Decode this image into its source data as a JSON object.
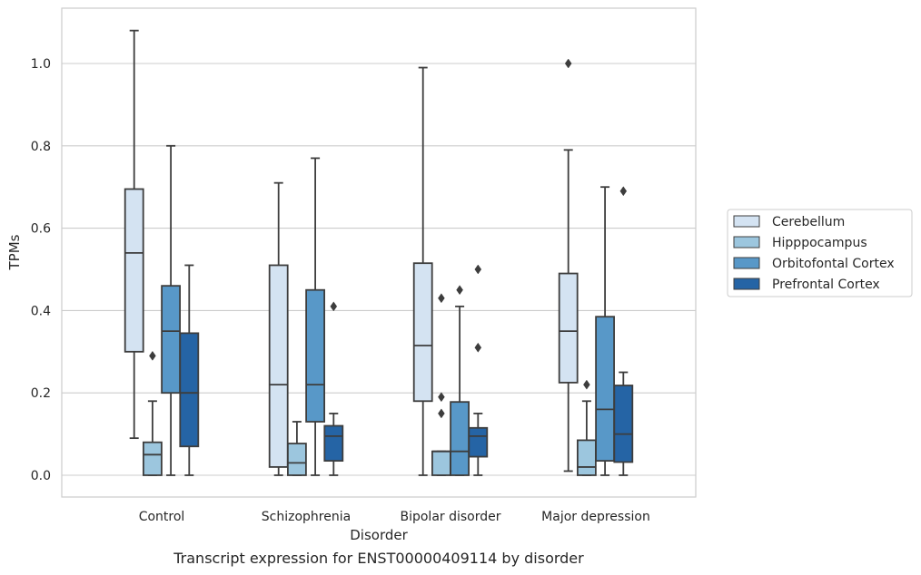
{
  "caption": "Transcript expression for ENST00000409114 by disorder",
  "chart_data": {
    "type": "boxplot",
    "xlabel": "Disorder",
    "ylabel": "TPMs",
    "ylim": [
      -0.05,
      1.14
    ],
    "yticks": [
      "0.0",
      "0.2",
      "0.4",
      "0.6",
      "0.8",
      "1.0"
    ],
    "grid": "horizontal",
    "legend_position": "right",
    "categories": [
      "Control",
      "Schizophrenia",
      "Bipolar disorder",
      "Major depression"
    ],
    "series": [
      {
        "name": "Cerebellum",
        "color": "#d4e3f2",
        "boxes": [
          {
            "whislo": 0.09,
            "q1": 0.3,
            "med": 0.54,
            "q3": 0.695,
            "whishi": 1.08,
            "fliers": []
          },
          {
            "whislo": 0.0,
            "q1": 0.02,
            "med": 0.22,
            "q3": 0.51,
            "whishi": 0.71,
            "fliers": []
          },
          {
            "whislo": 0.0,
            "q1": 0.18,
            "med": 0.315,
            "q3": 0.515,
            "whishi": 0.99,
            "fliers": []
          },
          {
            "whislo": 0.01,
            "q1": 0.225,
            "med": 0.35,
            "q3": 0.49,
            "whishi": 0.79,
            "fliers": [
              1.0
            ]
          }
        ]
      },
      {
        "name": "Hipppocampus",
        "color": "#9cc6de",
        "boxes": [
          {
            "whislo": 0.0,
            "q1": 0.0,
            "med": 0.05,
            "q3": 0.08,
            "whishi": 0.18,
            "fliers": [
              0.29
            ]
          },
          {
            "whislo": 0.0,
            "q1": 0.0,
            "med": 0.03,
            "q3": 0.077,
            "whishi": 0.13,
            "fliers": []
          },
          {
            "whislo": 0.0,
            "q1": 0.0,
            "med": 0.058,
            "q3": 0.058,
            "whishi": 0.058,
            "fliers": [
              0.15,
              0.19,
              0.43
            ]
          },
          {
            "whislo": 0.0,
            "q1": 0.0,
            "med": 0.02,
            "q3": 0.085,
            "whishi": 0.18,
            "fliers": [
              0.22
            ]
          }
        ]
      },
      {
        "name": "Orbitofontal Cortex",
        "color": "#5898c8",
        "boxes": [
          {
            "whislo": 0.0,
            "q1": 0.2,
            "med": 0.35,
            "q3": 0.46,
            "whishi": 0.8,
            "fliers": []
          },
          {
            "whislo": 0.0,
            "q1": 0.13,
            "med": 0.22,
            "q3": 0.45,
            "whishi": 0.77,
            "fliers": []
          },
          {
            "whislo": 0.0,
            "q1": 0.0,
            "med": 0.058,
            "q3": 0.178,
            "whishi": 0.41,
            "fliers": [
              0.45
            ]
          },
          {
            "whislo": 0.0,
            "q1": 0.035,
            "med": 0.16,
            "q3": 0.385,
            "whishi": 0.7,
            "fliers": []
          }
        ]
      },
      {
        "name": "Prefrontal Cortex",
        "color": "#2564a5",
        "boxes": [
          {
            "whislo": 0.0,
            "q1": 0.07,
            "med": 0.2,
            "q3": 0.345,
            "whishi": 0.51,
            "fliers": []
          },
          {
            "whislo": 0.0,
            "q1": 0.035,
            "med": 0.095,
            "q3": 0.12,
            "whishi": 0.15,
            "fliers": [
              0.41
            ]
          },
          {
            "whislo": 0.0,
            "q1": 0.045,
            "med": 0.095,
            "q3": 0.115,
            "whishi": 0.15,
            "fliers": [
              0.31,
              0.5
            ]
          },
          {
            "whislo": 0.0,
            "q1": 0.032,
            "med": 0.1,
            "q3": 0.218,
            "whishi": 0.25,
            "fliers": [
              0.69
            ]
          }
        ]
      }
    ]
  }
}
